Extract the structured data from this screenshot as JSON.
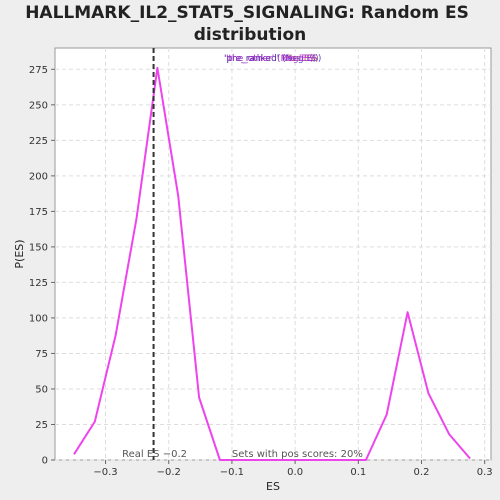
{
  "chart_data": {
    "type": "line",
    "title_line1": "HALLMARK_IL2_STAT5_SIGNALING: Random ES",
    "title_line2": "distribution",
    "xlabel": "ES",
    "ylabel": "P(ES)",
    "xlim": [
      -0.38,
      0.31
    ],
    "ylim": [
      0,
      290
    ],
    "x_ticks": [
      -0.3,
      -0.2,
      -0.1,
      0.0,
      0.1,
      0.2,
      0.3
    ],
    "x_tick_labels": [
      "−0.3",
      "−0.2",
      "−0.1",
      "0.0",
      "0.1",
      "0.2",
      "0.3"
    ],
    "y_ticks": [
      0,
      25,
      50,
      75,
      100,
      125,
      150,
      175,
      200,
      225,
      250,
      275
    ],
    "grid": true,
    "series": [
      {
        "color": "#ee44ee",
        "points": [
          [
            -0.35,
            4
          ],
          [
            -0.317,
            27
          ],
          [
            -0.284,
            88
          ],
          [
            -0.251,
            170
          ],
          [
            -0.218,
            276
          ],
          [
            -0.185,
            186
          ],
          [
            -0.152,
            44
          ],
          [
            -0.119,
            0
          ],
          [
            -0.086,
            0
          ],
          [
            -0.053,
            0
          ],
          [
            -0.02,
            0
          ],
          [
            0.013,
            0
          ],
          [
            0.046,
            0
          ],
          [
            0.079,
            0
          ],
          [
            0.112,
            0
          ],
          [
            0.145,
            32
          ],
          [
            0.178,
            104
          ],
          [
            0.211,
            47
          ],
          [
            0.244,
            18
          ],
          [
            0.277,
            1
          ]
        ]
      }
    ],
    "real_es": -0.224,
    "real_es_label": "Real ES −0.2",
    "pos_scores_label": "Sets with pos scores: 20%",
    "legend": [
      {
        "text": "'pre_ranked' (Pos ES)",
        "color": "#cc3333"
      },
      {
        "text": "'pre_ranked' (Neg ES)",
        "color": "#3333cc"
      },
      {
        "text": "'the_other' (Pos ES)",
        "color": "#cc33cc"
      },
      {
        "text": "'the_other' (Neg ES)",
        "color": "#9933cc"
      }
    ],
    "legend_position": "top-center"
  }
}
